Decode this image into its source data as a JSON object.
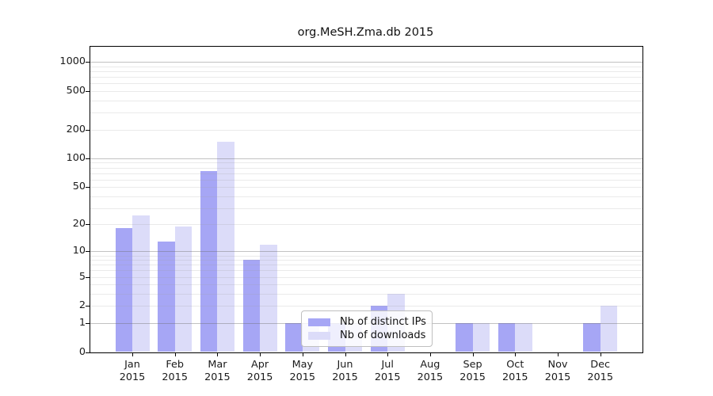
{
  "chart_data": {
    "type": "bar",
    "title": "org.MeSH.Zma.db 2015",
    "year": "2015",
    "categories": [
      "Jan",
      "Feb",
      "Mar",
      "Apr",
      "May",
      "Jun",
      "Jul",
      "Aug",
      "Sep",
      "Oct",
      "Nov",
      "Dec"
    ],
    "series": [
      {
        "name": "Nb of distinct IPs",
        "color": "#a6a6f5",
        "values": [
          18,
          13,
          74,
          8,
          1,
          1,
          2,
          0,
          1,
          1,
          0,
          1
        ]
      },
      {
        "name": "Nb of downloads",
        "color": "#dcdcf9",
        "values": [
          25,
          19,
          148,
          12,
          1,
          1,
          3,
          0,
          1,
          1,
          0,
          2
        ]
      }
    ],
    "xlabel": "",
    "ylabel": "",
    "yscale": "log1p",
    "ylim": [
      0,
      1450
    ],
    "yticks": [
      0,
      1,
      2,
      5,
      10,
      20,
      50,
      100,
      200,
      500,
      1000
    ],
    "major_gridlines": [
      1,
      10,
      100,
      1000
    ],
    "minor_gridlines": [
      2,
      3,
      4,
      5,
      6,
      7,
      8,
      9,
      20,
      30,
      40,
      50,
      60,
      70,
      80,
      90,
      200,
      300,
      400,
      500,
      600,
      700,
      800,
      900
    ],
    "legend": {
      "position": "lower-center",
      "entries": [
        "Nb of distinct IPs",
        "Nb of downloads"
      ]
    },
    "grid": true
  }
}
